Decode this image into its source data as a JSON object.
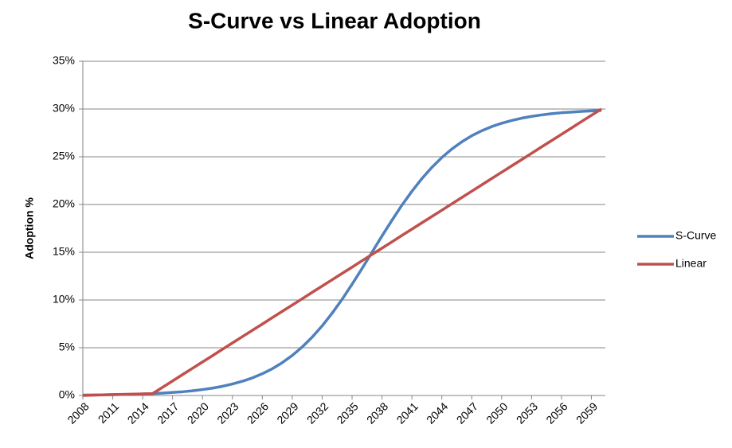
{
  "chart_data": {
    "type": "line",
    "title": "S-Curve vs Linear Adoption",
    "y_label": "Adoption %",
    "categories": [
      "2008",
      null,
      null,
      "2011",
      null,
      null,
      "2014",
      null,
      null,
      "2017",
      null,
      null,
      "2020",
      null,
      null,
      "2023",
      null,
      null,
      "2026",
      null,
      null,
      "2029",
      null,
      null,
      "2032",
      null,
      null,
      "2035",
      null,
      null,
      "2038",
      null,
      null,
      "2041",
      null,
      null,
      "2044",
      null,
      null,
      "2047",
      null,
      null,
      "2050",
      null,
      null,
      "2053",
      null,
      null,
      "2056",
      null,
      null,
      "2059",
      null
    ],
    "series": [
      {
        "name": "S-Curve",
        "color": "#4f81bd",
        "values": [
          0.04,
          0.05,
          0.06,
          0.08,
          0.1,
          0.13,
          0.16,
          0.2,
          0.25,
          0.32,
          0.39,
          0.49,
          0.62,
          0.77,
          0.96,
          1.2,
          1.49,
          1.84,
          2.28,
          2.8,
          3.44,
          4.19,
          5.08,
          6.11,
          7.29,
          8.62,
          10.07,
          11.65,
          13.3,
          15.0,
          16.7,
          18.35,
          19.93,
          21.38,
          22.71,
          23.89,
          24.92,
          25.81,
          26.56,
          27.2,
          27.72,
          28.16,
          28.51,
          28.8,
          29.04,
          29.23,
          29.38,
          29.51,
          29.61,
          29.68,
          29.75,
          29.8,
          29.84
        ]
      },
      {
        "name": "Linear",
        "color": "#c0504d",
        "values": [
          0,
          0.03,
          0.06,
          0.09,
          0.11,
          0.14,
          0.17,
          0.2,
          0.86,
          1.52,
          2.19,
          2.85,
          3.51,
          4.17,
          4.84,
          5.5,
          6.16,
          6.82,
          7.48,
          8.15,
          8.81,
          9.47,
          10.13,
          10.8,
          11.46,
          12.12,
          12.78,
          13.44,
          14.11,
          14.77,
          15.43,
          16.09,
          16.76,
          17.42,
          18.08,
          18.74,
          19.4,
          20.07,
          20.73,
          21.39,
          22.05,
          22.72,
          23.38,
          24.04,
          24.7,
          25.36,
          26.03,
          26.69,
          27.35,
          28.01,
          28.68,
          29.34,
          30.0
        ]
      }
    ],
    "ylim": [
      0,
      35
    ],
    "yticks": [
      {
        "value": 0,
        "label": "0%"
      },
      {
        "value": 5,
        "label": "5%"
      },
      {
        "value": 10,
        "label": "10%"
      },
      {
        "value": 15,
        "label": "15%"
      },
      {
        "value": 20,
        "label": "20%"
      },
      {
        "value": 25,
        "label": "25%"
      },
      {
        "value": 30,
        "label": "30%"
      },
      {
        "value": 35,
        "label": "35%"
      }
    ],
    "grid": true,
    "legend": "right"
  }
}
